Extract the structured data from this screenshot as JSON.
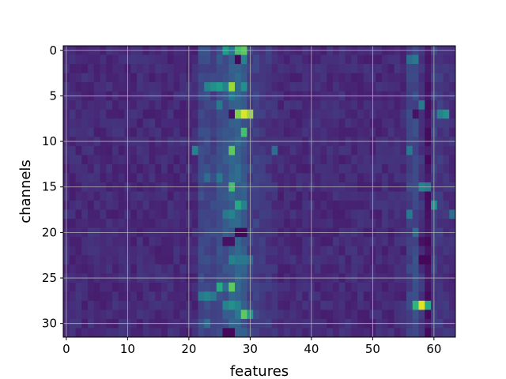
{
  "chart_data": {
    "type": "heatmap",
    "title": "",
    "xlabel": "features",
    "ylabel": "channels",
    "xlim": [
      -0.5,
      63.5
    ],
    "ylim": [
      31.5,
      -0.5
    ],
    "xticks": [
      0,
      10,
      20,
      30,
      40,
      50,
      60
    ],
    "yticks": [
      0,
      5,
      10,
      15,
      20,
      25,
      30
    ],
    "grid": true,
    "colormap": "viridis",
    "value_range": [
      0,
      1
    ],
    "n_rows": 32,
    "n_cols": 64,
    "background_value": 0.12,
    "column_profile": {
      "description_free_note": "",
      "band_columns": [
        22,
        23,
        24,
        25,
        26,
        27,
        28,
        29,
        30,
        31,
        32,
        33,
        34,
        56,
        57,
        58,
        59,
        60,
        61,
        62,
        63
      ],
      "band_values": [
        0.22,
        0.22,
        0.2,
        0.24,
        0.26,
        0.3,
        0.32,
        0.28,
        0.2,
        0.18,
        0.16,
        0.16,
        0.14,
        0.2,
        0.22,
        0.15,
        0.06,
        0.18,
        0.16,
        0.14,
        0.13
      ]
    },
    "highlights": [
      {
        "row": 0,
        "col": 26,
        "value": 0.55
      },
      {
        "row": 0,
        "col": 27,
        "value": 0.4
      },
      {
        "row": 0,
        "col": 28,
        "value": 0.7
      },
      {
        "row": 0,
        "col": 29,
        "value": 0.75
      },
      {
        "row": 1,
        "col": 28,
        "value": 0.02
      },
      {
        "row": 1,
        "col": 29,
        "value": 0.45
      },
      {
        "row": 1,
        "col": 57,
        "value": 0.4
      },
      {
        "row": 1,
        "col": 56,
        "value": 0.35
      },
      {
        "row": 4,
        "col": 23,
        "value": 0.45
      },
      {
        "row": 4,
        "col": 24,
        "value": 0.5
      },
      {
        "row": 4,
        "col": 25,
        "value": 0.55
      },
      {
        "row": 4,
        "col": 26,
        "value": 0.45
      },
      {
        "row": 4,
        "col": 27,
        "value": 0.85
      },
      {
        "row": 4,
        "col": 29,
        "value": 0.5
      },
      {
        "row": 5,
        "col": 27,
        "value": 0.4
      },
      {
        "row": 6,
        "col": 25,
        "value": 0.4
      },
      {
        "row": 6,
        "col": 58,
        "value": 0.4
      },
      {
        "row": 7,
        "col": 28,
        "value": 0.8
      },
      {
        "row": 7,
        "col": 29,
        "value": 0.95
      },
      {
        "row": 7,
        "col": 30,
        "value": 0.85
      },
      {
        "row": 7,
        "col": 27,
        "value": 0.05
      },
      {
        "row": 7,
        "col": 61,
        "value": 0.45
      },
      {
        "row": 7,
        "col": 62,
        "value": 0.5
      },
      {
        "row": 7,
        "col": 57,
        "value": 0.05
      },
      {
        "row": 9,
        "col": 29,
        "value": 0.7
      },
      {
        "row": 9,
        "col": 28,
        "value": 0.3
      },
      {
        "row": 11,
        "col": 27,
        "value": 0.75
      },
      {
        "row": 11,
        "col": 21,
        "value": 0.45
      },
      {
        "row": 11,
        "col": 56,
        "value": 0.4
      },
      {
        "row": 11,
        "col": 34,
        "value": 0.35
      },
      {
        "row": 14,
        "col": 23,
        "value": 0.35
      },
      {
        "row": 14,
        "col": 25,
        "value": 0.4
      },
      {
        "row": 15,
        "col": 27,
        "value": 0.7
      },
      {
        "row": 15,
        "col": 58,
        "value": 0.45
      },
      {
        "row": 15,
        "col": 59,
        "value": 0.4
      },
      {
        "row": 17,
        "col": 28,
        "value": 0.6
      },
      {
        "row": 17,
        "col": 29,
        "value": 0.45
      },
      {
        "row": 17,
        "col": 60,
        "value": 0.5
      },
      {
        "row": 18,
        "col": 26,
        "value": 0.4
      },
      {
        "row": 18,
        "col": 27,
        "value": 0.45
      },
      {
        "row": 18,
        "col": 56,
        "value": 0.4
      },
      {
        "row": 18,
        "col": 63,
        "value": 0.35
      },
      {
        "row": 20,
        "col": 28,
        "value": 0.02
      },
      {
        "row": 20,
        "col": 29,
        "value": 0.02
      },
      {
        "row": 20,
        "col": 57,
        "value": 0.35
      },
      {
        "row": 21,
        "col": 26,
        "value": 0.05
      },
      {
        "row": 21,
        "col": 27,
        "value": 0.05
      },
      {
        "row": 21,
        "col": 58,
        "value": 0.05
      },
      {
        "row": 23,
        "col": 27,
        "value": 0.45
      },
      {
        "row": 23,
        "col": 28,
        "value": 0.4
      },
      {
        "row": 23,
        "col": 29,
        "value": 0.4
      },
      {
        "row": 23,
        "col": 30,
        "value": 0.35
      },
      {
        "row": 23,
        "col": 58,
        "value": 0.02
      },
      {
        "row": 23,
        "col": 59,
        "value": 0.02
      },
      {
        "row": 26,
        "col": 25,
        "value": 0.6
      },
      {
        "row": 26,
        "col": 27,
        "value": 0.75
      },
      {
        "row": 26,
        "col": 26,
        "value": 0.35
      },
      {
        "row": 27,
        "col": 23,
        "value": 0.45
      },
      {
        "row": 27,
        "col": 24,
        "value": 0.4
      },
      {
        "row": 27,
        "col": 22,
        "value": 0.4
      },
      {
        "row": 28,
        "col": 26,
        "value": 0.45
      },
      {
        "row": 28,
        "col": 27,
        "value": 0.5
      },
      {
        "row": 28,
        "col": 28,
        "value": 0.45
      },
      {
        "row": 28,
        "col": 57,
        "value": 0.65
      },
      {
        "row": 28,
        "col": 58,
        "value": 0.95
      },
      {
        "row": 28,
        "col": 59,
        "value": 0.6
      },
      {
        "row": 29,
        "col": 29,
        "value": 0.75
      },
      {
        "row": 29,
        "col": 30,
        "value": 0.55
      },
      {
        "row": 29,
        "col": 28,
        "value": 0.4
      },
      {
        "row": 30,
        "col": 23,
        "value": 0.35
      },
      {
        "row": 31,
        "col": 26,
        "value": 0.02
      },
      {
        "row": 31,
        "col": 27,
        "value": 0.02
      }
    ]
  }
}
